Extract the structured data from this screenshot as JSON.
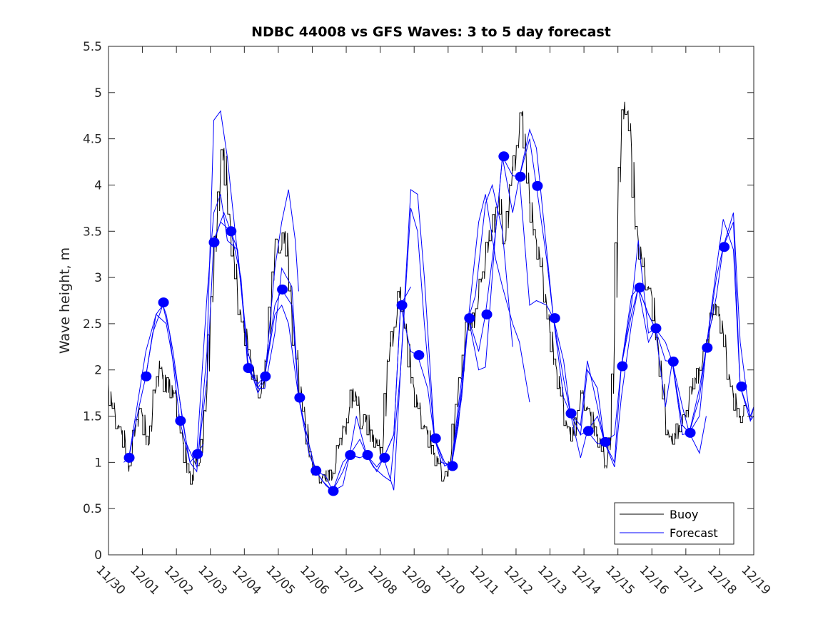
{
  "chart_data": {
    "type": "line",
    "title": "NDBC 44008 vs GFS Waves: 3 to 5 day forecast",
    "xlabel": "",
    "ylabel": "Wave height, m",
    "xlim_days": [
      0,
      19
    ],
    "ylim": [
      0,
      5.5
    ],
    "yticks": [
      0,
      0.5,
      1,
      1.5,
      2,
      2.5,
      3,
      3.5,
      4,
      4.5,
      5,
      5.5
    ],
    "ytick_labels": [
      "0",
      "0.5",
      "1",
      "1.5",
      "2",
      "2.5",
      "3",
      "3.5",
      "4",
      "4.5",
      "5",
      "5.5"
    ],
    "xtick_labels": [
      "11/30",
      "12/01",
      "12/02",
      "12/03",
      "12/04",
      "12/05",
      "12/06",
      "12/07",
      "12/08",
      "12/09",
      "12/10",
      "12/11",
      "12/12",
      "12/13",
      "12/14",
      "12/15",
      "12/16",
      "12/17",
      "12/18",
      "12/19"
    ],
    "grid": false,
    "legend": {
      "position": "bottom-right",
      "entries": [
        {
          "label": "Buoy",
          "color": "#000000"
        },
        {
          "label": "Forecast",
          "color": "#0000ff"
        }
      ]
    },
    "colors": {
      "buoy": "#000000",
      "forecast": "#0000ff",
      "dots": "#0000ff"
    },
    "buoy": {
      "name": "Buoy",
      "x_days": [
        0,
        0.1,
        0.2,
        0.3,
        0.4,
        0.5,
        0.6,
        0.7,
        0.8,
        0.9,
        1.0,
        1.1,
        1.2,
        1.3,
        1.4,
        1.5,
        1.6,
        1.7,
        1.8,
        1.9,
        2.0,
        2.1,
        2.2,
        2.3,
        2.4,
        2.5,
        2.6,
        2.7,
        2.8,
        2.9,
        3.0,
        3.1,
        3.2,
        3.3,
        3.4,
        3.5,
        3.6,
        3.7,
        3.8,
        3.9,
        4.0,
        4.1,
        4.2,
        4.3,
        4.4,
        4.5,
        4.6,
        4.7,
        4.8,
        4.9,
        5.0,
        5.1,
        5.2,
        5.3,
        5.4,
        5.5,
        5.6,
        5.7,
        5.8,
        5.9,
        6.0,
        6.1,
        6.2,
        6.3,
        6.4,
        6.5,
        6.6,
        6.7,
        6.8,
        6.9,
        7.0,
        7.1,
        7.2,
        7.3,
        7.4,
        7.5,
        7.6,
        7.7,
        7.8,
        7.9,
        8.0,
        8.1,
        8.2,
        8.3,
        8.4,
        8.5,
        8.6,
        8.7,
        8.8,
        8.9,
        9.0,
        9.1,
        9.2,
        9.3,
        9.4,
        9.5,
        9.6,
        9.7,
        9.8,
        9.9,
        10.0,
        10.1,
        10.2,
        10.3,
        10.4,
        10.5,
        10.6,
        10.7,
        10.8,
        10.9,
        11.0,
        11.1,
        11.2,
        11.3,
        11.4,
        11.5,
        11.6,
        11.7,
        11.8,
        11.9,
        12.0,
        12.1,
        12.2,
        12.3,
        12.4,
        12.5,
        12.6,
        12.7,
        12.8,
        12.9,
        13.0,
        13.1,
        13.2,
        13.3,
        13.4,
        13.5,
        13.6,
        13.7,
        13.8,
        13.9,
        14.0,
        14.1,
        14.2,
        14.3,
        14.4,
        14.5,
        14.6,
        14.7,
        14.8,
        14.9,
        15.0,
        15.1,
        15.2,
        15.3,
        15.4,
        15.5,
        15.6,
        15.7,
        15.8,
        15.9,
        16.0,
        16.1,
        16.2,
        16.3,
        16.4,
        16.5,
        16.6,
        16.7,
        16.8,
        16.9,
        17.0,
        17.1,
        17.2,
        17.3,
        17.4,
        17.5,
        17.6,
        17.7,
        17.8,
        17.9,
        18.0,
        18.1,
        18.2,
        18.3,
        18.4,
        18.5,
        18.6,
        18.7,
        18.8,
        18.9,
        19.0
      ],
      "values": [
        1.85,
        1.6,
        1.5,
        1.4,
        1.3,
        1.2,
        0.9,
        1.1,
        1.4,
        1.6,
        1.5,
        1.3,
        1.2,
        1.6,
        1.8,
        2.1,
        1.9,
        1.8,
        1.9,
        1.7,
        1.7,
        1.4,
        1.2,
        1.0,
        0.9,
        0.8,
        1.1,
        1.0,
        1.3,
        1.8,
        2.6,
        3.0,
        3.6,
        4.2,
        4.4,
        3.9,
        3.5,
        3.2,
        2.8,
        2.6,
        2.4,
        2.3,
        2.1,
        1.9,
        1.8,
        1.75,
        1.9,
        2.3,
        2.8,
        3.3,
        3.4,
        3.3,
        3.5,
        3.2,
        2.6,
        2.2,
        2.0,
        1.7,
        1.4,
        1.2,
        1.0,
        0.9,
        0.85,
        0.85,
        0.8,
        0.9,
        0.85,
        1.0,
        1.2,
        1.4,
        1.3,
        1.6,
        1.8,
        1.7,
        1.5,
        1.4,
        1.5,
        1.3,
        1.3,
        1.2,
        1.1,
        1.3,
        1.9,
        2.3,
        2.4,
        2.6,
        2.9,
        2.6,
        2.3,
        2.0,
        1.8,
        1.6,
        1.5,
        1.4,
        1.3,
        1.2,
        1.1,
        1.0,
        0.9,
        0.85,
        0.85,
        1.1,
        1.5,
        1.8,
        1.9,
        2.4,
        2.5,
        2.5,
        2.6,
        2.8,
        3.0,
        3.2,
        3.4,
        3.5,
        3.7,
        3.9,
        3.5,
        3.4,
        3.8,
        4.2,
        4.3,
        4.6,
        4.8,
        4.3,
        3.8,
        3.6,
        3.4,
        3.2,
        3.0,
        2.7,
        2.4,
        2.2,
        2.0,
        1.8,
        1.6,
        1.4,
        1.3,
        1.3,
        1.5,
        1.7,
        1.7,
        1.6,
        1.5,
        1.4,
        1.3,
        1.2,
        1.0,
        1.05,
        1.3,
        2.4,
        3.8,
        4.5,
        4.9,
        4.8,
        4.4,
        3.7,
        3.4,
        3.2,
        3.0,
        2.9,
        2.8,
        2.5,
        2.2,
        1.9,
        1.5,
        1.3,
        1.2,
        1.3,
        1.4,
        1.4,
        1.5,
        1.7,
        1.8,
        1.9,
        2.0,
        2.1,
        2.2,
        2.5,
        2.6,
        2.7,
        2.6,
        2.4,
        2.1,
        1.9,
        1.7,
        1.6,
        1.5,
        1.5,
        1.6
      ]
    },
    "forecast_runs": [
      {
        "name": "Forecast",
        "x_days": [
          0.45,
          0.6,
          0.9,
          1.1,
          1.3,
          1.5,
          1.6,
          1.8,
          2.1,
          2.4,
          2.6,
          2.8
        ],
        "values": [
          1.0,
          1.05,
          1.6,
          1.93,
          2.4,
          2.6,
          2.7,
          2.4,
          1.45,
          1.0,
          1.09,
          1.2
        ]
      },
      {
        "name": "Forecast",
        "x_days": [
          0.6,
          1.1,
          1.4,
          1.6,
          1.7,
          1.9,
          2.2,
          2.4,
          2.6,
          2.9,
          3.1,
          3.3,
          3.5,
          3.7,
          3.9
        ],
        "values": [
          1.05,
          2.2,
          2.6,
          2.7,
          2.6,
          2.2,
          1.4,
          1.0,
          0.9,
          2.2,
          4.7,
          4.8,
          4.3,
          3.6,
          2.9
        ]
      },
      {
        "name": "Forecast",
        "x_days": [
          1.1,
          1.4,
          1.7,
          2.0,
          2.3,
          2.6,
          2.9,
          3.1,
          3.4,
          3.6,
          3.8,
          4.1,
          4.4,
          4.6,
          4.9,
          5.1,
          5.4,
          5.6
        ],
        "values": [
          1.93,
          2.6,
          2.5,
          1.9,
          1.2,
          0.95,
          1.9,
          3.4,
          3.7,
          3.5,
          3.3,
          2.2,
          1.8,
          1.8,
          2.4,
          3.1,
          2.9,
          1.7
        ]
      },
      {
        "name": "Forecast",
        "x_days": [
          2.6,
          2.9,
          3.1,
          3.3,
          3.5,
          3.8,
          4.1,
          4.4,
          4.6,
          4.9,
          5.1,
          5.3,
          5.5,
          5.6
        ],
        "values": [
          1.09,
          2.8,
          3.7,
          3.9,
          3.4,
          3.3,
          2.1,
          1.75,
          1.9,
          3.1,
          3.6,
          3.95,
          3.4,
          2.85
        ]
      },
      {
        "name": "Forecast",
        "x_days": [
          3.1,
          3.3,
          3.6,
          3.9,
          4.1,
          4.4,
          4.6,
          4.9,
          5.1,
          5.3,
          5.6,
          5.9,
          6.1,
          6.4,
          6.6,
          6.9,
          7.1,
          7.4
        ],
        "values": [
          3.38,
          3.6,
          3.5,
          3.0,
          2.02,
          1.8,
          1.93,
          2.6,
          2.7,
          2.5,
          1.7,
          1.2,
          0.91,
          0.75,
          0.69,
          0.75,
          1.08,
          1.05
        ]
      },
      {
        "name": "Forecast",
        "x_days": [
          4.1,
          4.4,
          4.6,
          4.9,
          5.1,
          5.4,
          5.6,
          5.9,
          6.1,
          6.4,
          6.6,
          6.9,
          7.1,
          7.4,
          7.6,
          7.9,
          8.1,
          8.4,
          8.6,
          8.9
        ],
        "values": [
          2.02,
          1.85,
          1.93,
          2.7,
          2.87,
          2.7,
          1.7,
          1.1,
          0.91,
          0.85,
          0.69,
          0.9,
          1.08,
          1.25,
          1.08,
          0.9,
          1.05,
          1.3,
          2.7,
          2.9
        ]
      },
      {
        "name": "Forecast",
        "x_days": [
          5.6,
          5.9,
          6.1,
          6.3,
          6.6,
          6.9,
          7.1,
          7.3,
          7.6,
          7.8,
          8.1,
          8.3,
          8.6,
          8.9,
          9.1,
          9.3,
          9.6,
          9.8,
          10.1,
          10.3,
          10.6,
          10.8,
          11.1,
          11.3,
          11.6,
          11.9
        ],
        "values": [
          1.7,
          1.2,
          0.91,
          0.8,
          0.69,
          1.0,
          1.08,
          1.5,
          1.08,
          0.95,
          0.85,
          0.8,
          2.0,
          3.95,
          3.9,
          3.0,
          1.26,
          1.0,
          0.96,
          1.4,
          2.56,
          2.8,
          3.8,
          4.0,
          3.5,
          2.25
        ]
      },
      {
        "name": "Forecast",
        "x_days": [
          7.1,
          7.4,
          7.6,
          7.9,
          8.1,
          8.4,
          8.6,
          8.9,
          9.1,
          9.3,
          9.6,
          9.9,
          10.1,
          10.4,
          10.6,
          10.9,
          11.1,
          11.4,
          11.6,
          11.9,
          12.1,
          12.4
        ],
        "values": [
          1.08,
          1.05,
          1.08,
          0.95,
          1.05,
          0.7,
          2.0,
          3.75,
          3.5,
          2.5,
          1.26,
          0.96,
          1.0,
          1.9,
          2.56,
          3.6,
          3.9,
          3.2,
          2.9,
          2.5,
          2.3,
          1.65
        ]
      },
      {
        "name": "Forecast",
        "x_days": [
          8.1,
          8.4,
          8.6,
          8.9,
          9.1,
          9.4,
          9.6,
          9.9,
          10.1,
          10.4,
          10.6,
          10.9,
          11.1,
          11.4,
          11.6,
          11.9,
          12.1,
          12.4,
          12.6,
          12.9,
          13.1,
          13.4,
          13.6,
          13.9,
          14.1,
          14.4,
          14.6
        ],
        "values": [
          1.05,
          1.3,
          2.7,
          2.2,
          2.16,
          1.8,
          1.26,
          1.0,
          0.96,
          1.8,
          2.56,
          2.2,
          2.6,
          3.5,
          4.3,
          3.7,
          4.09,
          2.7,
          2.75,
          2.7,
          2.56,
          2.1,
          1.53,
          1.3,
          2.0,
          1.8,
          1.22
        ]
      },
      {
        "name": "Forecast",
        "x_days": [
          10.1,
          10.4,
          10.6,
          10.9,
          11.1,
          11.4,
          11.6,
          11.9,
          12.1,
          12.4,
          12.6,
          12.9,
          13.1,
          13.4,
          13.6,
          13.9,
          14.1,
          14.4,
          14.6,
          14.9,
          15.1,
          15.4,
          15.6,
          15.9,
          16.1
        ],
        "values": [
          0.96,
          1.7,
          2.56,
          2.0,
          2.03,
          3.5,
          4.31,
          4.1,
          4.09,
          4.6,
          4.4,
          3.3,
          2.56,
          1.9,
          1.53,
          1.3,
          1.34,
          1.5,
          1.22,
          1.3,
          2.04,
          2.8,
          2.89,
          2.3,
          2.45
        ]
      },
      {
        "name": "Forecast",
        "x_days": [
          12.1,
          12.4,
          12.6,
          12.9,
          13.1,
          13.4,
          13.6,
          13.9,
          14.1,
          14.4,
          14.6,
          14.9,
          15.1,
          15.4,
          15.6,
          15.9,
          16.1,
          16.4,
          16.6,
          16.9,
          17.1,
          17.4,
          17.6
        ],
        "values": [
          4.09,
          4.5,
          3.99,
          3.2,
          2.56,
          1.7,
          1.53,
          1.05,
          1.34,
          1.2,
          1.22,
          0.95,
          1.7,
          2.5,
          2.89,
          2.6,
          2.45,
          2.1,
          2.09,
          1.4,
          1.32,
          1.1,
          1.5
        ]
      },
      {
        "name": "Forecast",
        "x_days": [
          13.6,
          13.9,
          14.1,
          14.4,
          14.6,
          14.9,
          15.1,
          15.4,
          15.6,
          15.9,
          16.1,
          16.4,
          16.6,
          16.9,
          17.1,
          17.4,
          17.6,
          17.9,
          18.1,
          18.4,
          18.6,
          18.9,
          19.0
        ],
        "values": [
          1.53,
          1.4,
          2.1,
          1.6,
          1.22,
          1.0,
          2.04,
          2.7,
          3.4,
          2.4,
          2.45,
          2.3,
          2.09,
          1.6,
          1.32,
          1.7,
          2.24,
          2.8,
          3.33,
          3.6,
          1.82,
          1.5,
          1.6
        ]
      },
      {
        "name": "Forecast",
        "x_days": [
          15.1,
          15.4,
          15.6,
          15.9,
          16.1,
          16.4,
          16.6,
          16.9,
          17.1,
          17.4,
          17.6,
          17.9,
          18.1,
          18.4,
          18.6,
          18.9,
          19.0
        ],
        "values": [
          2.04,
          2.6,
          2.89,
          2.6,
          2.45,
          1.6,
          2.09,
          1.4,
          1.32,
          1.8,
          2.24,
          3.0,
          3.33,
          3.7,
          2.3,
          1.45,
          1.5
        ]
      },
      {
        "name": "Forecast",
        "x_days": [
          16.6,
          16.9,
          17.1,
          17.4,
          17.6,
          17.9,
          18.1,
          18.4,
          18.6,
          18.9,
          19.0
        ],
        "values": [
          2.09,
          1.3,
          1.32,
          1.5,
          2.24,
          3.1,
          3.63,
          3.3,
          1.82,
          1.45,
          1.6
        ]
      }
    ],
    "forecast_points": {
      "x_days": [
        0.61,
        1.11,
        1.62,
        2.12,
        2.62,
        3.11,
        3.61,
        4.12,
        4.62,
        5.12,
        5.63,
        6.11,
        6.62,
        7.12,
        7.63,
        8.13,
        8.64,
        9.14,
        9.63,
        10.13,
        10.63,
        11.14,
        11.64,
        12.13,
        12.63,
        13.14,
        13.62,
        14.13,
        14.63,
        15.13,
        15.64,
        16.12,
        16.63,
        17.13,
        17.63,
        18.13,
        18.64
      ],
      "values": [
        1.05,
        1.93,
        2.73,
        1.45,
        1.09,
        3.38,
        3.5,
        2.02,
        1.93,
        2.87,
        1.7,
        0.91,
        0.69,
        1.08,
        1.08,
        1.05,
        2.7,
        2.16,
        1.26,
        0.96,
        2.56,
        2.6,
        4.31,
        4.09,
        3.99,
        2.56,
        1.53,
        1.34,
        1.22,
        2.04,
        2.89,
        2.45,
        2.09,
        1.32,
        2.24,
        3.33,
        1.82
      ]
    }
  }
}
